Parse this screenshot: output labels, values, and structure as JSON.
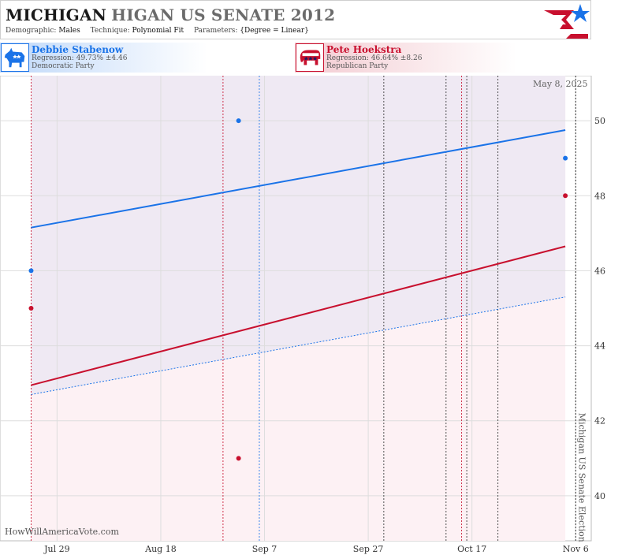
{
  "header": {
    "title_state": "MICHIGAN",
    "title_race": "HIGAN US SENATE 2012",
    "demographic_label": "Demographic:",
    "demographic_value": "Males",
    "technique_label": "Technique:",
    "technique_value": "Polynomial Fit",
    "parameters_label": "Parameters:",
    "parameters_value": "{Degree = Linear}"
  },
  "candidates": {
    "dem": {
      "name": "Debbie Stabenow",
      "regression": "Regression: 49.73% ±4.46",
      "party": "Democratic Party",
      "icon": "donkey-icon",
      "color": "#1a73e8"
    },
    "rep": {
      "name": "Pete Hoekstra",
      "regression": "Regression: 46.64% ±8.26",
      "party": "Republican Party",
      "icon": "elephant-icon",
      "color": "#c8102e"
    }
  },
  "date_stamp": "May 8, 2025",
  "watermark": "HowWillAmericaVote.com",
  "election_label": "Michigan US Senate Election",
  "chart_data": {
    "type": "scatter",
    "title": "",
    "x_axis": {
      "type": "date",
      "range": [
        "2012-07-18",
        "2012-11-09"
      ],
      "ticks": [
        {
          "date": "2012-07-29",
          "label": "Jul 29"
        },
        {
          "date": "2012-08-18",
          "label": "Aug 18"
        },
        {
          "date": "2012-09-07",
          "label": "Sep 7"
        },
        {
          "date": "2012-09-27",
          "label": "Sep 27"
        },
        {
          "date": "2012-10-17",
          "label": "Oct 17"
        },
        {
          "date": "2012-11-06",
          "label": "Nov 6"
        }
      ]
    },
    "y_axis": {
      "range": [
        38.8,
        51.2
      ],
      "ticks": [
        40,
        42,
        44,
        46,
        48,
        50
      ],
      "position": "right"
    },
    "grid": true,
    "fit_range": [
      "2012-07-24",
      "2012-11-04"
    ],
    "election_date": "2012-11-06",
    "series": [
      {
        "name": "Debbie Stabenow",
        "color": "#1a73e8",
        "points": [
          {
            "x": "2012-07-24",
            "y": 46.0
          },
          {
            "x": "2012-09-02",
            "y": 50.0
          },
          {
            "x": "2012-11-04",
            "y": 49.0
          }
        ],
        "fit": [
          {
            "x": "2012-07-24",
            "y": 47.15
          },
          {
            "x": "2012-11-04",
            "y": 49.75
          }
        ],
        "band_low": [
          {
            "x": "2012-07-24",
            "y": 42.7
          },
          {
            "x": "2012-11-04",
            "y": 45.3
          }
        ]
      },
      {
        "name": "Pete Hoekstra",
        "color": "#c8102e",
        "points": [
          {
            "x": "2012-07-24",
            "y": 45.0
          },
          {
            "x": "2012-09-02",
            "y": 41.0
          },
          {
            "x": "2012-11-04",
            "y": 48.0
          }
        ],
        "fit": [
          {
            "x": "2012-07-24",
            "y": 42.95
          },
          {
            "x": "2012-11-04",
            "y": 46.65
          }
        ]
      }
    ],
    "event_lines": [
      {
        "date": "2012-07-24",
        "color": "#c8102e"
      },
      {
        "date": "2012-08-30",
        "color": "#c8102e"
      },
      {
        "date": "2012-09-06",
        "color": "#1a73e8"
      },
      {
        "date": "2012-09-30",
        "color": "#333333"
      },
      {
        "date": "2012-10-12",
        "color": "#333333"
      },
      {
        "date": "2012-10-15",
        "color": "#c8102e"
      },
      {
        "date": "2012-10-16",
        "color": "#333333"
      },
      {
        "date": "2012-10-22",
        "color": "#333333"
      }
    ]
  }
}
